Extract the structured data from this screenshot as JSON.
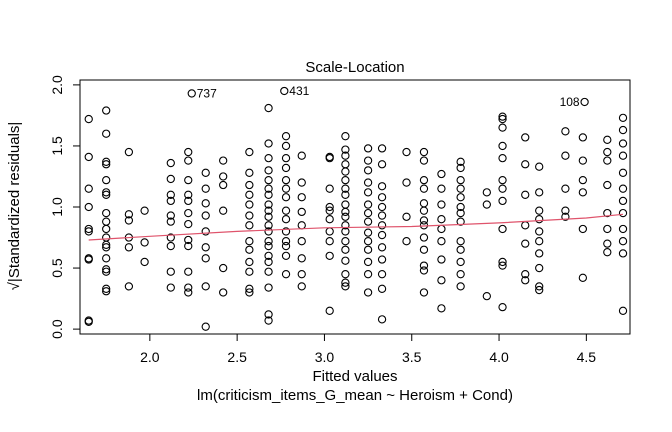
{
  "chart_data": {
    "type": "scatter",
    "title": "Scale-Location",
    "xlabel": "Fitted values",
    "subtitle": "lm(criticism_items_G_mean ~ Heroism + Cond)",
    "ylabel": "√|Standardized residuals|",
    "xlim": [
      1.6,
      4.75
    ],
    "ylim": [
      -0.04,
      2.04
    ],
    "x_ticks": [
      2.0,
      2.5,
      3.0,
      3.5,
      4.0,
      4.5
    ],
    "x_tick_labels": [
      "2.0",
      "2.5",
      "3.0",
      "3.5",
      "4.0",
      "4.5"
    ],
    "y_ticks": [
      0.0,
      0.5,
      1.0,
      1.5,
      2.0
    ],
    "y_tick_labels": [
      "0.0",
      "0.5",
      "1.0",
      "1.5",
      "2.0"
    ],
    "smoother_color": "#DF536B",
    "point_color": "#000000",
    "labeled_points": [
      {
        "label": "737",
        "x": 2.24,
        "y": 1.93
      },
      {
        "label": "431",
        "x": 2.77,
        "y": 1.95
      },
      {
        "label": "108",
        "x": 4.49,
        "y": 1.86
      }
    ],
    "smoother": {
      "x": [
        1.65,
        2.0,
        2.5,
        3.0,
        3.5,
        4.0,
        4.5,
        4.71
      ],
      "y": [
        0.73,
        0.76,
        0.8,
        0.83,
        0.84,
        0.87,
        0.91,
        0.94
      ]
    },
    "points": [
      [
        1.65,
        1.72
      ],
      [
        1.65,
        1.41
      ],
      [
        1.65,
        1.15
      ],
      [
        1.65,
        1.0
      ],
      [
        1.65,
        0.82
      ],
      [
        1.65,
        0.8
      ],
      [
        1.65,
        0.58
      ],
      [
        1.65,
        0.57
      ],
      [
        1.65,
        0.07
      ],
      [
        1.65,
        0.06
      ],
      [
        1.75,
        1.79
      ],
      [
        1.75,
        1.6
      ],
      [
        1.75,
        1.37
      ],
      [
        1.75,
        1.35
      ],
      [
        1.75,
        1.22
      ],
      [
        1.75,
        1.12
      ],
      [
        1.75,
        1.1
      ],
      [
        1.75,
        0.95
      ],
      [
        1.75,
        0.88
      ],
      [
        1.75,
        0.82
      ],
      [
        1.75,
        0.75
      ],
      [
        1.75,
        0.69
      ],
      [
        1.75,
        0.67
      ],
      [
        1.75,
        0.58
      ],
      [
        1.75,
        0.49
      ],
      [
        1.75,
        0.47
      ],
      [
        1.75,
        0.33
      ],
      [
        1.75,
        0.31
      ],
      [
        1.88,
        1.45
      ],
      [
        1.88,
        0.94
      ],
      [
        1.88,
        0.89
      ],
      [
        1.88,
        0.75
      ],
      [
        1.88,
        0.67
      ],
      [
        1.88,
        0.35
      ],
      [
        1.97,
        0.97
      ],
      [
        1.97,
        0.71
      ],
      [
        1.97,
        0.55
      ],
      [
        2.12,
        1.36
      ],
      [
        2.12,
        1.23
      ],
      [
        2.12,
        1.1
      ],
      [
        2.12,
        1.05
      ],
      [
        2.12,
        0.93
      ],
      [
        2.12,
        0.88
      ],
      [
        2.12,
        0.75
      ],
      [
        2.12,
        0.68
      ],
      [
        2.12,
        0.47
      ],
      [
        2.12,
        0.34
      ],
      [
        2.22,
        1.45
      ],
      [
        2.22,
        1.38
      ],
      [
        2.22,
        1.22
      ],
      [
        2.22,
        1.1
      ],
      [
        2.22,
        1.05
      ],
      [
        2.22,
        0.95
      ],
      [
        2.22,
        0.86
      ],
      [
        2.22,
        0.73
      ],
      [
        2.22,
        0.68
      ],
      [
        2.22,
        0.47
      ],
      [
        2.22,
        0.34
      ],
      [
        2.22,
        0.3
      ],
      [
        2.32,
        1.28
      ],
      [
        2.32,
        1.15
      ],
      [
        2.32,
        1.03
      ],
      [
        2.32,
        0.93
      ],
      [
        2.32,
        0.8
      ],
      [
        2.32,
        0.67
      ],
      [
        2.32,
        0.58
      ],
      [
        2.32,
        0.35
      ],
      [
        2.32,
        0.02
      ],
      [
        2.42,
        1.38
      ],
      [
        2.42,
        1.25
      ],
      [
        2.42,
        1.18
      ],
      [
        2.42,
        0.97
      ],
      [
        2.42,
        0.5
      ],
      [
        2.42,
        0.3
      ],
      [
        2.57,
        1.45
      ],
      [
        2.57,
        1.28
      ],
      [
        2.57,
        1.18
      ],
      [
        2.57,
        1.1
      ],
      [
        2.57,
        1.02
      ],
      [
        2.57,
        0.93
      ],
      [
        2.57,
        0.85
      ],
      [
        2.57,
        0.72
      ],
      [
        2.57,
        0.65
      ],
      [
        2.57,
        0.55
      ],
      [
        2.57,
        0.47
      ],
      [
        2.57,
        0.33
      ],
      [
        2.57,
        0.3
      ],
      [
        2.68,
        1.81
      ],
      [
        2.68,
        1.52
      ],
      [
        2.68,
        1.4
      ],
      [
        2.68,
        1.3
      ],
      [
        2.68,
        1.22
      ],
      [
        2.68,
        1.15
      ],
      [
        2.68,
        1.1
      ],
      [
        2.68,
        1.02
      ],
      [
        2.68,
        0.97
      ],
      [
        2.68,
        0.92
      ],
      [
        2.68,
        0.85
      ],
      [
        2.68,
        0.8
      ],
      [
        2.68,
        0.72
      ],
      [
        2.68,
        0.68
      ],
      [
        2.68,
        0.6
      ],
      [
        2.68,
        0.55
      ],
      [
        2.68,
        0.47
      ],
      [
        2.68,
        0.34
      ],
      [
        2.68,
        0.12
      ],
      [
        2.68,
        0.07
      ],
      [
        2.78,
        1.58
      ],
      [
        2.78,
        1.5
      ],
      [
        2.78,
        1.4
      ],
      [
        2.78,
        1.32
      ],
      [
        2.78,
        1.22
      ],
      [
        2.78,
        1.15
      ],
      [
        2.78,
        1.08
      ],
      [
        2.78,
        0.97
      ],
      [
        2.78,
        0.9
      ],
      [
        2.78,
        0.8
      ],
      [
        2.78,
        0.72
      ],
      [
        2.78,
        0.68
      ],
      [
        2.78,
        0.6
      ],
      [
        2.78,
        0.45
      ],
      [
        2.87,
        1.42
      ],
      [
        2.87,
        1.2
      ],
      [
        2.87,
        1.08
      ],
      [
        2.87,
        0.96
      ],
      [
        2.87,
        0.85
      ],
      [
        2.87,
        0.72
      ],
      [
        2.87,
        0.58
      ],
      [
        2.87,
        0.45
      ],
      [
        2.87,
        0.35
      ],
      [
        3.03,
        1.41
      ],
      [
        3.03,
        1.4
      ],
      [
        3.03,
        1.15
      ],
      [
        3.03,
        1.0
      ],
      [
        3.03,
        0.97
      ],
      [
        3.03,
        0.9
      ],
      [
        3.03,
        0.8
      ],
      [
        3.03,
        0.72
      ],
      [
        3.03,
        0.6
      ],
      [
        3.03,
        0.15
      ],
      [
        3.12,
        1.58
      ],
      [
        3.12,
        1.47
      ],
      [
        3.12,
        1.42
      ],
      [
        3.12,
        1.35
      ],
      [
        3.12,
        1.29
      ],
      [
        3.12,
        1.22
      ],
      [
        3.12,
        1.15
      ],
      [
        3.12,
        1.1
      ],
      [
        3.12,
        1.02
      ],
      [
        3.12,
        0.96
      ],
      [
        3.12,
        0.92
      ],
      [
        3.12,
        0.85
      ],
      [
        3.12,
        0.8
      ],
      [
        3.12,
        0.72
      ],
      [
        3.12,
        0.65
      ],
      [
        3.12,
        0.56
      ],
      [
        3.12,
        0.45
      ],
      [
        3.12,
        0.38
      ],
      [
        3.12,
        0.35
      ],
      [
        3.25,
        1.48
      ],
      [
        3.25,
        1.38
      ],
      [
        3.25,
        1.3
      ],
      [
        3.25,
        1.2
      ],
      [
        3.25,
        1.12
      ],
      [
        3.25,
        1.02
      ],
      [
        3.25,
        0.95
      ],
      [
        3.25,
        0.88
      ],
      [
        3.25,
        0.79
      ],
      [
        3.25,
        0.72
      ],
      [
        3.25,
        0.65
      ],
      [
        3.25,
        0.55
      ],
      [
        3.25,
        0.45
      ],
      [
        3.25,
        0.3
      ],
      [
        3.33,
        1.48
      ],
      [
        3.33,
        1.35
      ],
      [
        3.33,
        1.17
      ],
      [
        3.33,
        1.08
      ],
      [
        3.33,
        1.0
      ],
      [
        3.33,
        0.93
      ],
      [
        3.33,
        0.85
      ],
      [
        3.33,
        0.77
      ],
      [
        3.33,
        0.67
      ],
      [
        3.33,
        0.57
      ],
      [
        3.33,
        0.45
      ],
      [
        3.33,
        0.33
      ],
      [
        3.33,
        0.08
      ],
      [
        3.47,
        1.45
      ],
      [
        3.47,
        1.2
      ],
      [
        3.47,
        0.92
      ],
      [
        3.47,
        0.72
      ],
      [
        3.57,
        1.45
      ],
      [
        3.57,
        1.38
      ],
      [
        3.57,
        1.22
      ],
      [
        3.57,
        1.15
      ],
      [
        3.57,
        1.03
      ],
      [
        3.57,
        0.97
      ],
      [
        3.57,
        0.89
      ],
      [
        3.57,
        0.85
      ],
      [
        3.57,
        0.75
      ],
      [
        3.57,
        0.65
      ],
      [
        3.57,
        0.52
      ],
      [
        3.57,
        0.48
      ],
      [
        3.57,
        0.3
      ],
      [
        3.67,
        1.27
      ],
      [
        3.67,
        1.15
      ],
      [
        3.67,
        1.02
      ],
      [
        3.67,
        0.9
      ],
      [
        3.67,
        0.82
      ],
      [
        3.67,
        0.72
      ],
      [
        3.67,
        0.57
      ],
      [
        3.67,
        0.4
      ],
      [
        3.67,
        0.17
      ],
      [
        3.78,
        1.37
      ],
      [
        3.78,
        1.32
      ],
      [
        3.78,
        1.22
      ],
      [
        3.78,
        1.15
      ],
      [
        3.78,
        1.08
      ],
      [
        3.78,
        1.0
      ],
      [
        3.78,
        0.95
      ],
      [
        3.78,
        0.88
      ],
      [
        3.78,
        0.72
      ],
      [
        3.78,
        0.65
      ],
      [
        3.78,
        0.55
      ],
      [
        3.78,
        0.45
      ],
      [
        3.78,
        0.35
      ],
      [
        3.93,
        1.12
      ],
      [
        3.93,
        1.02
      ],
      [
        3.93,
        0.27
      ],
      [
        4.02,
        1.74
      ],
      [
        4.02,
        1.72
      ],
      [
        4.02,
        1.65
      ],
      [
        4.02,
        1.5
      ],
      [
        4.02,
        1.4
      ],
      [
        4.02,
        1.22
      ],
      [
        4.02,
        1.15
      ],
      [
        4.02,
        1.05
      ],
      [
        4.02,
        0.82
      ],
      [
        4.02,
        0.55
      ],
      [
        4.02,
        0.52
      ],
      [
        4.02,
        0.18
      ],
      [
        4.15,
        1.57
      ],
      [
        4.15,
        1.35
      ],
      [
        4.15,
        1.1
      ],
      [
        4.15,
        0.85
      ],
      [
        4.15,
        0.7
      ],
      [
        4.15,
        0.45
      ],
      [
        4.15,
        0.4
      ],
      [
        4.23,
        1.33
      ],
      [
        4.23,
        1.12
      ],
      [
        4.23,
        0.97
      ],
      [
        4.23,
        0.9
      ],
      [
        4.23,
        0.8
      ],
      [
        4.23,
        0.72
      ],
      [
        4.23,
        0.62
      ],
      [
        4.23,
        0.5
      ],
      [
        4.23,
        0.35
      ],
      [
        4.23,
        0.32
      ],
      [
        4.38,
        1.62
      ],
      [
        4.38,
        1.42
      ],
      [
        4.38,
        1.15
      ],
      [
        4.38,
        0.97
      ],
      [
        4.38,
        0.92
      ],
      [
        4.48,
        1.57
      ],
      [
        4.48,
        1.38
      ],
      [
        4.48,
        1.22
      ],
      [
        4.48,
        1.12
      ],
      [
        4.48,
        0.82
      ],
      [
        4.48,
        0.42
      ],
      [
        4.62,
        1.55
      ],
      [
        4.62,
        1.45
      ],
      [
        4.62,
        1.38
      ],
      [
        4.62,
        1.18
      ],
      [
        4.62,
        0.95
      ],
      [
        4.62,
        0.82
      ],
      [
        4.62,
        0.7
      ],
      [
        4.62,
        0.63
      ],
      [
        4.71,
        1.73
      ],
      [
        4.71,
        1.63
      ],
      [
        4.71,
        1.52
      ],
      [
        4.71,
        1.42
      ],
      [
        4.71,
        1.28
      ],
      [
        4.71,
        1.15
      ],
      [
        4.71,
        1.05
      ],
      [
        4.71,
        0.95
      ],
      [
        4.71,
        0.82
      ],
      [
        4.71,
        0.72
      ],
      [
        4.71,
        0.62
      ],
      [
        4.71,
        0.15
      ]
    ]
  }
}
